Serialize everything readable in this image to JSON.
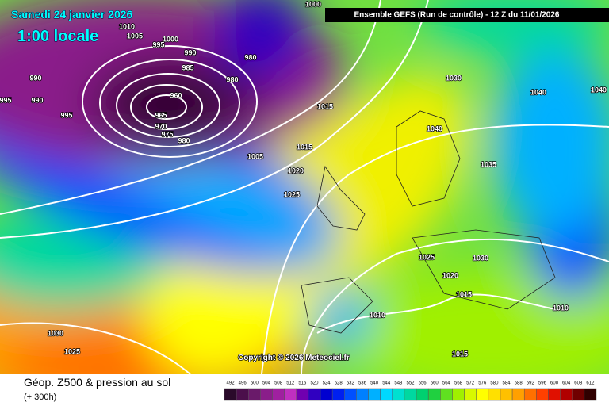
{
  "header": {
    "date": "Samedi 24 janvier 2026",
    "time": "1:00 locale",
    "run": "Ensemble GEFS  (Run de contrôle)  -  12 Z du 11/01/2026"
  },
  "copyright": "Copyright © 2026 Meteociel.fr",
  "isobar_labels": [
    "1000",
    "1010",
    "1005",
    "1000",
    "995",
    "990",
    "980",
    "985",
    "980",
    "990",
    "960",
    "995",
    "990",
    "965",
    "995",
    "970",
    "975",
    "980",
    "1015",
    "1030",
    "1040",
    "1040",
    "1040",
    "1015",
    "1005",
    "1035",
    "1020",
    "1025",
    "1025",
    "1030",
    "1020",
    "1015",
    "1010",
    "1010",
    "1030",
    "1025",
    "1015"
  ],
  "footer": {
    "title": "Géop. Z500 & pression au sol",
    "lead": "(+ 300h)"
  },
  "legend": {
    "labels": [
      "492",
      "496",
      "500",
      "504",
      "508",
      "512",
      "516",
      "520",
      "524",
      "528",
      "532",
      "536",
      "540",
      "544",
      "548",
      "552",
      "556",
      "560",
      "564",
      "568",
      "572",
      "576",
      "580",
      "584",
      "588",
      "592",
      "596",
      "600",
      "604",
      "608",
      "612"
    ]
  }
}
